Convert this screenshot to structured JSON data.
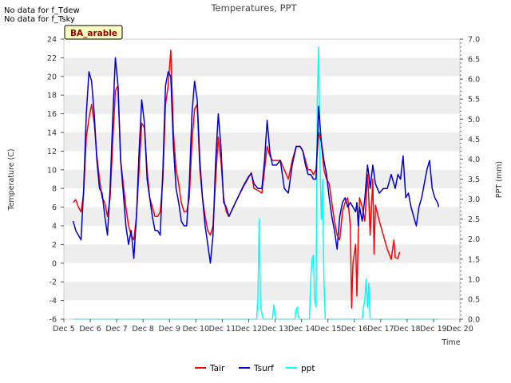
{
  "notes": [
    "No data for f_Tdew",
    "No data for f_Tsky"
  ],
  "chart_data": {
    "type": "line",
    "title": "Temperatures, PPT",
    "site_label": "BA_arable",
    "xlabel": "Time",
    "ylabel_left": "Temperature (C)",
    "ylabel_right": "PPT (mm)",
    "x_range_days": [
      5,
      20
    ],
    "x_ticks": [
      {
        "day": 5,
        "label": "Dec 5"
      },
      {
        "day": 6,
        "label": "Dec 6"
      },
      {
        "day": 7,
        "label": "Dec 7"
      },
      {
        "day": 8,
        "label": "Dec 8"
      },
      {
        "day": 9,
        "label": "Dec 9"
      },
      {
        "day": 10,
        "label": "Dec 10"
      },
      {
        "day": 11,
        "label": "Dec 11"
      },
      {
        "day": 12,
        "label": "Dec 12"
      },
      {
        "day": 13,
        "label": "Dec 13"
      },
      {
        "day": 14,
        "label": "Dec 14"
      },
      {
        "day": 15,
        "label": "Dec 15"
      },
      {
        "day": 16,
        "label": "Dec 16"
      },
      {
        "day": 17,
        "label": "Dec 17"
      },
      {
        "day": 18,
        "label": "Dec 18"
      },
      {
        "day": 19,
        "label": "Dec 19"
      },
      {
        "day": 20,
        "label": "Dec 20"
      }
    ],
    "y_left_range": [
      -6,
      24
    ],
    "y_left_ticks": [
      "-6",
      "-4",
      "-2",
      "0",
      "2",
      "4",
      "6",
      "8",
      "10",
      "12",
      "14",
      "16",
      "18",
      "20",
      "22",
      "24"
    ],
    "y_right_range": [
      0.0,
      7.0
    ],
    "y_right_ticks": [
      "0.0",
      "0.5",
      "1.0",
      "1.5",
      "2.0",
      "2.5",
      "3.0",
      "3.5",
      "4.0",
      "4.5",
      "5.0",
      "5.5",
      "6.0",
      "6.5",
      "7.0"
    ],
    "grid": "horizontal bands",
    "legend_position": "bottom-center",
    "series": [
      {
        "name": "Tair",
        "color": "#ff0000",
        "axis": "left",
        "points": [
          [
            5.35,
            6.5
          ],
          [
            5.45,
            6.8
          ],
          [
            5.55,
            6.0
          ],
          [
            5.65,
            5.5
          ],
          [
            5.75,
            7.5
          ],
          [
            5.85,
            13.5
          ],
          [
            5.95,
            15.5
          ],
          [
            6.05,
            17.0
          ],
          [
            6.15,
            15.0
          ],
          [
            6.25,
            11.5
          ],
          [
            6.35,
            9.0
          ],
          [
            6.45,
            7.0
          ],
          [
            6.55,
            6.5
          ],
          [
            6.65,
            5.0
          ],
          [
            6.75,
            7.0
          ],
          [
            6.85,
            13.0
          ],
          [
            6.95,
            18.5
          ],
          [
            7.05,
            19.0
          ],
          [
            7.15,
            11.0
          ],
          [
            7.25,
            8.5
          ],
          [
            7.35,
            6.0
          ],
          [
            7.45,
            4.0
          ],
          [
            7.55,
            3.0
          ],
          [
            7.65,
            2.5
          ],
          [
            7.75,
            5.0
          ],
          [
            7.85,
            10.0
          ],
          [
            7.95,
            15.0
          ],
          [
            8.05,
            14.5
          ],
          [
            8.15,
            10.0
          ],
          [
            8.25,
            7.0
          ],
          [
            8.35,
            6.0
          ],
          [
            8.45,
            5.0
          ],
          [
            8.55,
            5.0
          ],
          [
            8.65,
            5.5
          ],
          [
            8.75,
            9.0
          ],
          [
            8.85,
            17.0
          ],
          [
            8.95,
            19.0
          ],
          [
            9.05,
            22.8
          ],
          [
            9.15,
            14.0
          ],
          [
            9.25,
            10.0
          ],
          [
            9.35,
            8.5
          ],
          [
            9.45,
            6.5
          ],
          [
            9.55,
            5.5
          ],
          [
            9.65,
            5.5
          ],
          [
            9.75,
            7.0
          ],
          [
            9.85,
            13.0
          ],
          [
            9.95,
            16.5
          ],
          [
            10.05,
            17.0
          ],
          [
            10.15,
            10.0
          ],
          [
            10.25,
            7.0
          ],
          [
            10.35,
            5.0
          ],
          [
            10.45,
            3.5
          ],
          [
            10.55,
            3.0
          ],
          [
            10.65,
            4.0
          ],
          [
            10.75,
            9.0
          ],
          [
            10.85,
            13.5
          ],
          [
            10.95,
            11.0
          ],
          [
            11.05,
            7.0
          ],
          [
            11.15,
            5.5
          ],
          [
            11.25,
            5.0
          ],
          [
            11.5,
            6.5
          ],
          [
            11.8,
            8.2
          ],
          [
            12.0,
            9.2
          ],
          [
            12.1,
            9.7
          ],
          [
            12.2,
            8.0
          ],
          [
            12.35,
            7.8
          ],
          [
            12.5,
            7.5
          ],
          [
            12.6,
            10.0
          ],
          [
            12.7,
            12.5
          ],
          [
            12.8,
            11.5
          ],
          [
            12.9,
            11.0
          ],
          [
            13.05,
            11.0
          ],
          [
            13.2,
            11.0
          ],
          [
            13.35,
            10.0
          ],
          [
            13.5,
            9.0
          ],
          [
            13.65,
            11.0
          ],
          [
            13.8,
            12.5
          ],
          [
            13.95,
            12.5
          ],
          [
            14.05,
            12.0
          ],
          [
            14.15,
            11.0
          ],
          [
            14.25,
            10.0
          ],
          [
            14.35,
            10.0
          ],
          [
            14.45,
            9.5
          ],
          [
            14.55,
            10.0
          ],
          [
            14.65,
            14.0
          ],
          [
            14.75,
            13.0
          ],
          [
            14.85,
            10.0
          ],
          [
            14.95,
            9.0
          ],
          [
            15.05,
            8.5
          ],
          [
            15.15,
            6.5
          ],
          [
            15.25,
            4.5
          ],
          [
            15.35,
            3.0
          ],
          [
            15.45,
            2.5
          ],
          [
            15.55,
            5.5
          ],
          [
            15.65,
            6.5
          ],
          [
            15.75,
            7.0
          ],
          [
            15.85,
            4.0
          ],
          [
            15.9,
            -4.8
          ],
          [
            15.95,
            0.0
          ],
          [
            16.05,
            2.0
          ],
          [
            16.1,
            -3.5
          ],
          [
            16.15,
            3.0
          ],
          [
            16.2,
            7.0
          ],
          [
            16.3,
            6.0
          ],
          [
            16.4,
            4.5
          ],
          [
            16.5,
            9.5
          ],
          [
            16.55,
            7.0
          ],
          [
            16.6,
            3.0
          ],
          [
            16.7,
            9.0
          ],
          [
            16.75,
            1.0
          ],
          [
            16.8,
            6.2
          ],
          [
            16.95,
            4.5
          ],
          [
            17.1,
            3.0
          ],
          [
            17.25,
            1.5
          ],
          [
            17.4,
            0.4
          ],
          [
            17.5,
            2.5
          ],
          [
            17.55,
            0.6
          ],
          [
            17.65,
            0.5
          ],
          [
            17.72,
            1.2
          ]
        ]
      },
      {
        "name": "Tsurf",
        "color": "#0000cc",
        "axis": "left",
        "points": [
          [
            5.35,
            4.5
          ],
          [
            5.45,
            3.5
          ],
          [
            5.55,
            3.0
          ],
          [
            5.65,
            2.5
          ],
          [
            5.75,
            8.0
          ],
          [
            5.85,
            16.0
          ],
          [
            5.95,
            20.5
          ],
          [
            6.05,
            19.5
          ],
          [
            6.15,
            16.0
          ],
          [
            6.25,
            11.0
          ],
          [
            6.35,
            8.0
          ],
          [
            6.45,
            7.5
          ],
          [
            6.55,
            5.0
          ],
          [
            6.65,
            3.0
          ],
          [
            6.75,
            8.0
          ],
          [
            6.85,
            15.5
          ],
          [
            6.95,
            22.0
          ],
          [
            7.05,
            19.0
          ],
          [
            7.15,
            11.0
          ],
          [
            7.25,
            7.5
          ],
          [
            7.35,
            4.0
          ],
          [
            7.45,
            2.0
          ],
          [
            7.55,
            3.5
          ],
          [
            7.65,
            0.5
          ],
          [
            7.75,
            5.0
          ],
          [
            7.85,
            12.0
          ],
          [
            7.95,
            17.5
          ],
          [
            8.05,
            15.0
          ],
          [
            8.15,
            9.0
          ],
          [
            8.25,
            7.0
          ],
          [
            8.35,
            5.0
          ],
          [
            8.45,
            3.5
          ],
          [
            8.55,
            3.5
          ],
          [
            8.65,
            3.0
          ],
          [
            8.75,
            10.0
          ],
          [
            8.85,
            19.0
          ],
          [
            8.95,
            20.5
          ],
          [
            9.05,
            20.0
          ],
          [
            9.15,
            12.5
          ],
          [
            9.25,
            8.0
          ],
          [
            9.35,
            6.5
          ],
          [
            9.45,
            4.5
          ],
          [
            9.55,
            4.0
          ],
          [
            9.65,
            4.0
          ],
          [
            9.75,
            8.5
          ],
          [
            9.85,
            16.0
          ],
          [
            9.95,
            19.5
          ],
          [
            10.05,
            17.5
          ],
          [
            10.15,
            11.0
          ],
          [
            10.25,
            7.0
          ],
          [
            10.35,
            4.0
          ],
          [
            10.45,
            2.0
          ],
          [
            10.55,
            0.0
          ],
          [
            10.65,
            3.0
          ],
          [
            10.75,
            11.0
          ],
          [
            10.85,
            16.0
          ],
          [
            10.95,
            12.5
          ],
          [
            11.05,
            6.5
          ],
          [
            11.15,
            6.0
          ],
          [
            11.25,
            5.0
          ],
          [
            11.5,
            6.5
          ],
          [
            11.8,
            8.3
          ],
          [
            12.0,
            9.3
          ],
          [
            12.1,
            9.6
          ],
          [
            12.2,
            8.5
          ],
          [
            12.35,
            8.0
          ],
          [
            12.5,
            8.0
          ],
          [
            12.6,
            11.0
          ],
          [
            12.7,
            15.3
          ],
          [
            12.8,
            12.0
          ],
          [
            12.9,
            10.5
          ],
          [
            13.05,
            10.5
          ],
          [
            13.2,
            11.0
          ],
          [
            13.35,
            8.0
          ],
          [
            13.5,
            7.5
          ],
          [
            13.65,
            10.5
          ],
          [
            13.8,
            12.5
          ],
          [
            13.95,
            12.5
          ],
          [
            14.05,
            12.0
          ],
          [
            14.15,
            10.5
          ],
          [
            14.25,
            9.5
          ],
          [
            14.35,
            9.5
          ],
          [
            14.45,
            9.0
          ],
          [
            14.55,
            9.0
          ],
          [
            14.65,
            16.8
          ],
          [
            14.75,
            13.0
          ],
          [
            14.85,
            11.0
          ],
          [
            14.95,
            9.5
          ],
          [
            15.05,
            7.0
          ],
          [
            15.15,
            5.0
          ],
          [
            15.25,
            3.5
          ],
          [
            15.35,
            1.5
          ],
          [
            15.45,
            5.0
          ],
          [
            15.55,
            6.5
          ],
          [
            15.65,
            7.0
          ],
          [
            15.75,
            6.0
          ],
          [
            15.85,
            6.5
          ],
          [
            15.95,
            6.0
          ],
          [
            16.05,
            5.5
          ],
          [
            16.1,
            6.5
          ],
          [
            16.15,
            4.0
          ],
          [
            16.2,
            6.0
          ],
          [
            16.3,
            4.5
          ],
          [
            16.4,
            7.0
          ],
          [
            16.5,
            10.5
          ],
          [
            16.55,
            9.5
          ],
          [
            16.6,
            8.0
          ],
          [
            16.7,
            10.5
          ],
          [
            16.8,
            8.5
          ],
          [
            16.95,
            7.5
          ],
          [
            17.1,
            8.0
          ],
          [
            17.25,
            8.0
          ],
          [
            17.4,
            9.5
          ],
          [
            17.5,
            8.5
          ],
          [
            17.55,
            8.0
          ],
          [
            17.65,
            9.5
          ],
          [
            17.75,
            9.0
          ],
          [
            17.85,
            11.5
          ],
          [
            17.95,
            7.0
          ],
          [
            18.05,
            7.5
          ],
          [
            18.15,
            6.0
          ],
          [
            18.25,
            5.0
          ],
          [
            18.35,
            4.0
          ],
          [
            18.45,
            6.0
          ],
          [
            18.55,
            7.0
          ],
          [
            18.65,
            8.5
          ],
          [
            18.75,
            10.0
          ],
          [
            18.85,
            11.0
          ],
          [
            18.95,
            8.0
          ],
          [
            19.05,
            7.0
          ],
          [
            19.15,
            6.5
          ],
          [
            19.2,
            6.0
          ]
        ]
      },
      {
        "name": "ppt",
        "color": "#00ffff",
        "axis": "right",
        "points": [
          [
            5.35,
            0.0
          ],
          [
            12.3,
            0.0
          ],
          [
            12.35,
            0.5
          ],
          [
            12.4,
            2.5
          ],
          [
            12.45,
            0.3
          ],
          [
            12.55,
            0.0
          ],
          [
            12.9,
            0.0
          ],
          [
            12.95,
            0.35
          ],
          [
            13.0,
            0.1
          ],
          [
            13.05,
            0.0
          ],
          [
            13.75,
            0.0
          ],
          [
            13.8,
            0.25
          ],
          [
            13.85,
            0.3
          ],
          [
            13.9,
            0.0
          ],
          [
            14.3,
            0.0
          ],
          [
            14.35,
            1.0
          ],
          [
            14.4,
            1.5
          ],
          [
            14.45,
            1.6
          ],
          [
            14.5,
            0.5
          ],
          [
            14.55,
            0.3
          ],
          [
            14.6,
            5.5
          ],
          [
            14.65,
            6.8
          ],
          [
            14.7,
            4.0
          ],
          [
            14.75,
            2.5
          ],
          [
            14.8,
            3.5
          ],
          [
            14.85,
            1.0
          ],
          [
            14.9,
            0.0
          ],
          [
            16.3,
            0.0
          ],
          [
            16.35,
            0.3
          ],
          [
            16.4,
            0.5
          ],
          [
            16.45,
            1.0
          ],
          [
            16.5,
            0.3
          ],
          [
            16.55,
            0.9
          ],
          [
            16.6,
            0.0
          ],
          [
            19.2,
            0.0
          ]
        ]
      }
    ]
  }
}
